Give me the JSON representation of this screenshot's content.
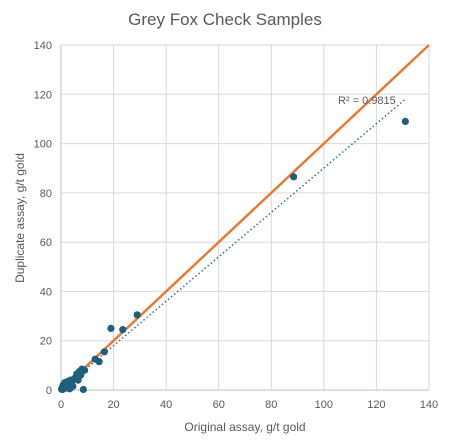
{
  "chart_data": {
    "type": "scatter",
    "title": "Grey Fox Check Samples",
    "xlabel": "Original assay, g/t gold",
    "ylabel": "Duplicate assay, g/t gold",
    "xlim": [
      0,
      140
    ],
    "ylim": [
      0,
      140
    ],
    "xticks": [
      0,
      20,
      40,
      60,
      80,
      100,
      120,
      140
    ],
    "yticks": [
      0,
      20,
      40,
      60,
      80,
      100,
      120,
      140
    ],
    "grid": "vertical and horizontal major gridlines",
    "series": [
      {
        "color": "#1f5f7a",
        "points": [
          [
            0.2,
            0.3
          ],
          [
            0.4,
            1.0
          ],
          [
            0.6,
            0.2
          ],
          [
            0.8,
            2.0
          ],
          [
            1.0,
            0.5
          ],
          [
            1.2,
            1.5
          ],
          [
            1.5,
            3.0
          ],
          [
            1.8,
            0.8
          ],
          [
            2.0,
            2.5
          ],
          [
            2.3,
            1.2
          ],
          [
            2.6,
            3.5
          ],
          [
            3.0,
            2.0
          ],
          [
            3.3,
            0.5
          ],
          [
            3.6,
            4.0
          ],
          [
            4.0,
            3.0
          ],
          [
            4.5,
            1.5
          ],
          [
            5.0,
            4.5
          ],
          [
            5.5,
            5.0
          ],
          [
            6.0,
            6.5
          ],
          [
            6.5,
            4.0
          ],
          [
            7.0,
            7.5
          ],
          [
            7.5,
            6.0
          ],
          [
            8.0,
            8.5
          ],
          [
            8.5,
            0.2
          ],
          [
            9.0,
            8.0
          ],
          [
            13.0,
            12.5
          ],
          [
            14.5,
            11.5
          ],
          [
            16.5,
            15.5
          ],
          [
            19.0,
            25.0
          ],
          [
            23.5,
            24.5
          ],
          [
            29.0,
            30.5
          ],
          [
            88.5,
            86.5
          ],
          [
            131.0,
            109.0
          ]
        ]
      }
    ],
    "fit_line": {
      "color": "#e07b39",
      "from": [
        0,
        0
      ],
      "to": [
        140,
        140
      ]
    },
    "trendline": {
      "color": "#2e6f8e",
      "style": "dotted",
      "from": [
        0,
        -1.2
      ],
      "to": [
        131,
        118
      ],
      "label": "R² = 0.9815"
    }
  }
}
